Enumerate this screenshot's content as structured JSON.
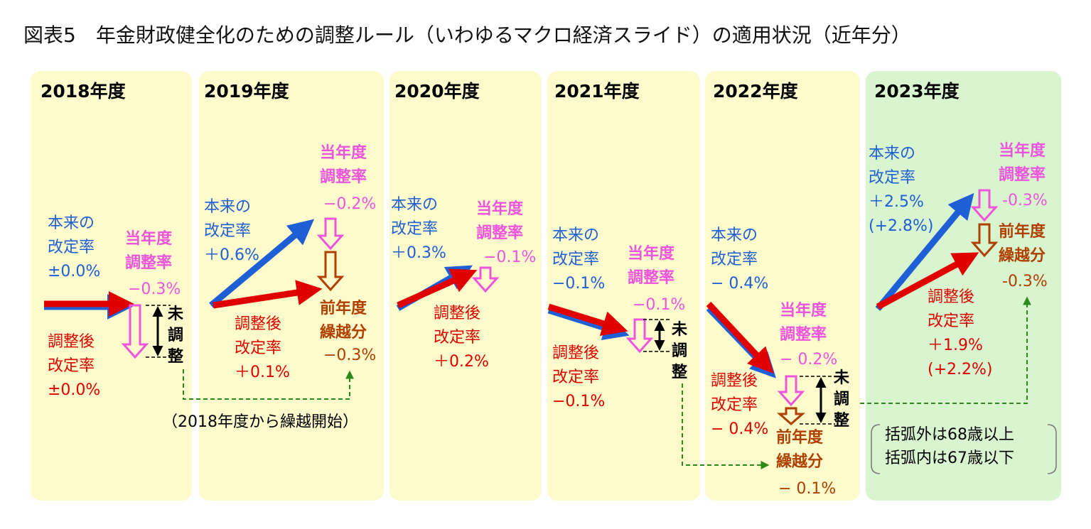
{
  "title": "図表5　年金財政健全化のための調整ルール（いわゆるマクロ経済スライド）の適用状況（近年分）",
  "panels": [
    {
      "year": "2018年度",
      "original_rate": "本来の\n改定率\n±0.0%",
      "adjustment_rate_label": "当年度\n調整率",
      "adjustment_rate": "−0.3%",
      "adjusted_rate": "調整後\n改定率\n±0.0%",
      "unadjusted": "未\n調\n整"
    },
    {
      "year": "2019年度",
      "original_rate": "本来の\n改定率\n＋0.6%",
      "adjustment_rate_label": "当年度\n調整率",
      "adjustment_rate": "−0.2%",
      "adjusted_rate": "調整後\n改定率\n＋0.1%",
      "carryover_label": "前年度\n繰越分",
      "carryover": "−0.3%"
    },
    {
      "year": "2020年度",
      "original_rate": "本来の\n改定率\n＋0.3%",
      "adjustment_rate_label": "当年度\n調整率",
      "adjustment_rate": "−0.1%",
      "adjusted_rate": "調整後\n改定率\n＋0.2%"
    },
    {
      "year": "2021年度",
      "original_rate": "本来の\n改定率\n−0.1%",
      "adjustment_rate_label": "当年度\n調整率",
      "adjustment_rate": "−0.1%",
      "adjusted_rate": "調整後\n改定率\n−0.1%",
      "unadjusted": "未\n調\n整"
    },
    {
      "year": "2022年度",
      "original_rate": "本来の\n改定率\n− 0.4%",
      "adjustment_rate_label": "当年度\n調整率",
      "adjustment_rate": "− 0.2%",
      "adjusted_rate": "調整後\n改定率\n− 0.4%",
      "unadjusted": "未\n調\n整",
      "carryover_label": "前年度\n繰越分",
      "carryover": "− 0.1%"
    },
    {
      "year": "2023年度",
      "original_rate": "本来の\n改定率\n＋2.5%\n(+2.8%)",
      "adjustment_rate_label": "当年度\n調整率",
      "adjustment_rate": "-0.3%",
      "carryover_label": "前年度\n繰越分",
      "carryover": "-0.3%",
      "adjusted_rate": "調整後\n改定率\n＋1.9%\n(+2.2%)"
    }
  ],
  "carryover_note": "（2018年度から繰越開始）",
  "age_note": "括弧外は68歳以上\n括弧内は67歳以下"
}
